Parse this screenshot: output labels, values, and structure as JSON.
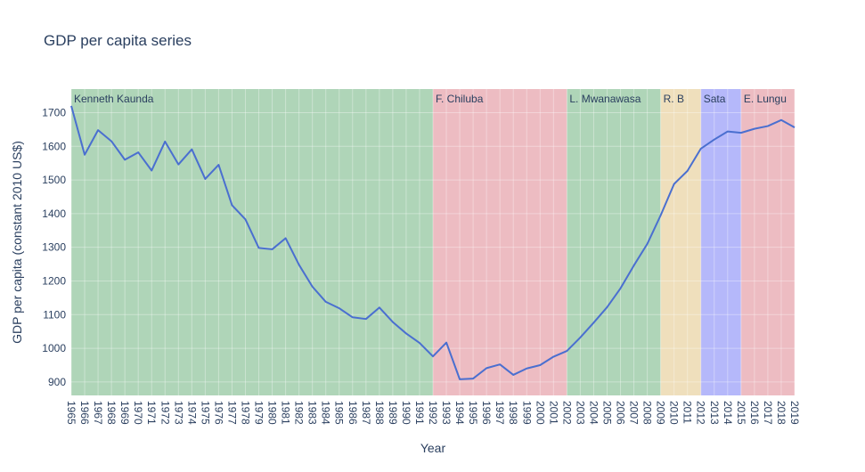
{
  "chart_data": {
    "type": "line",
    "title": "GDP per capita series",
    "xlabel": "Year",
    "ylabel": "GDP per capita (constant 2010 US$)",
    "xlim": [
      1965,
      2019
    ],
    "ylim": [
      860,
      1770
    ],
    "yticks": [
      900,
      1000,
      1100,
      1200,
      1300,
      1400,
      1500,
      1600,
      1700
    ],
    "grid": true,
    "series": [
      {
        "color": "#4a6fd0",
        "x": [
          1965,
          1966,
          1967,
          1968,
          1969,
          1970,
          1971,
          1972,
          1973,
          1974,
          1975,
          1976,
          1977,
          1978,
          1979,
          1980,
          1981,
          1982,
          1983,
          1984,
          1985,
          1986,
          1987,
          1988,
          1989,
          1990,
          1991,
          1992,
          1993,
          1994,
          1995,
          1996,
          1997,
          1998,
          1999,
          2000,
          2001,
          2002,
          2003,
          2004,
          2005,
          2006,
          2007,
          2008,
          2009,
          2010,
          2011,
          2012,
          2013,
          2014,
          2015,
          2016,
          2017,
          2018,
          2019
        ],
        "values": [
          1720,
          1575,
          1648,
          1615,
          1560,
          1582,
          1528,
          1614,
          1546,
          1591,
          1503,
          1545,
          1425,
          1383,
          1298,
          1294,
          1327,
          1248,
          1183,
          1138,
          1119,
          1092,
          1087,
          1121,
          1078,
          1044,
          1016,
          976,
          1017,
          908,
          910,
          941,
          952,
          921,
          940,
          950,
          975,
          992,
          1032,
          1076,
          1122,
          1178,
          1246,
          1310,
          1395,
          1488,
          1527,
          1593,
          1620,
          1644,
          1640,
          1652,
          1660,
          1678,
          1656
        ]
      }
    ],
    "regions": [
      {
        "label": "Kenneth Kaunda",
        "start": 1965,
        "end": 1992,
        "color": "#5fac72"
      },
      {
        "label": "F. Chiluba",
        "start": 1992,
        "end": 2002,
        "color": "#dc7a85"
      },
      {
        "label": "L. Mwanawasa",
        "start": 2002,
        "end": 2009,
        "color": "#5fac72"
      },
      {
        "label": "R. B",
        "start": 2009,
        "end": 2012,
        "color": "#dfbf7a"
      },
      {
        "label": "Sata",
        "start": 2012,
        "end": 2015,
        "color": "#6b72f6"
      },
      {
        "label": "E. Lungu",
        "start": 2015,
        "end": 2019,
        "color": "#dc7a85"
      }
    ]
  }
}
